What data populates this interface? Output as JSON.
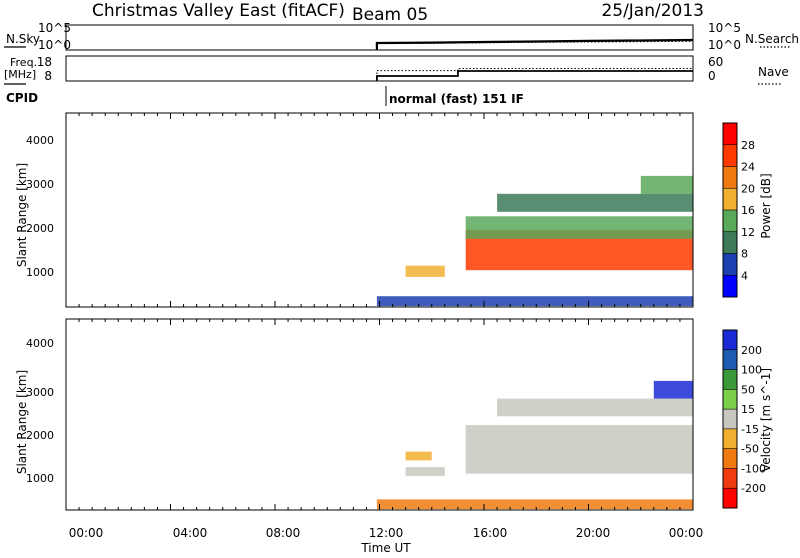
{
  "header": {
    "title": "Christmas Valley East (fitACF)",
    "beam": "Beam 05",
    "date": "25/Jan/2013"
  },
  "aux_panels": {
    "nsky": {
      "label": "N.Sky",
      "right_label": "N.Search",
      "left_ticks": [
        "10^5",
        "10^0"
      ],
      "right_ticks": [
        "10^5",
        "10^0"
      ]
    },
    "freq": {
      "label_line1": "Freq.",
      "label_line2": "[MHz]",
      "right_label": "Nave",
      "left_ticks": [
        "18",
        "8"
      ],
      "right_ticks": [
        "60",
        "0"
      ]
    },
    "cpid": {
      "label": "CPID",
      "text": "normal (fast) 151 IF"
    }
  },
  "x_axis": {
    "label": "Time UT",
    "ticks": [
      "00:00",
      "04:00",
      "08:00",
      "12:00",
      "16:00",
      "20:00",
      "00:00"
    ]
  },
  "panel_power": {
    "ylabel": "Slant Range [km]",
    "yticks": [
      "1000",
      "2000",
      "3000",
      "4000"
    ],
    "colorbar_label": "Power [dB]",
    "colorbar_ticks": [
      "4",
      "8",
      "12",
      "16",
      "20",
      "24",
      "28"
    ],
    "colors": [
      "#0000ff",
      "#1d40b0",
      "#3d7a5a",
      "#5aa85a",
      "#f0b030",
      "#f07a10",
      "#ff3a00",
      "#ff0000"
    ]
  },
  "panel_velocity": {
    "ylabel": "Slant Range [km]",
    "yticks": [
      "1000",
      "2000",
      "3000",
      "4000"
    ],
    "colorbar_label": "Velocity [m s^-1]",
    "colorbar_ticks": [
      "200",
      "100",
      "50",
      "15",
      "-15",
      "-50",
      "-100",
      "-200"
    ],
    "colors": [
      "#1a2bd6",
      "#1d5cb0",
      "#3a9a3a",
      "#7ad04a",
      "#c8c8c0",
      "#f0b030",
      "#f07a10",
      "#f03a10",
      "#ff0000"
    ]
  },
  "chart_data": [
    {
      "type": "line",
      "title": "Christmas Valley East (fitACF)",
      "x": [
        "12:00",
        "14:00",
        "16:00",
        "18:00",
        "20:00",
        "22:00",
        "24:00"
      ],
      "x_hours": [
        11.9,
        14.0,
        16.0,
        18.0,
        20.0,
        22.0,
        24.0
      ],
      "series": [
        {
          "name": "N.Sky",
          "values": [
            25,
            30,
            40,
            50,
            65,
            80,
            100
          ]
        },
        {
          "name": "N.Search",
          "values": [
            20,
            22,
            28,
            35,
            40,
            45,
            55
          ]
        }
      ],
      "ylabel": "N.Sky",
      "ylim": [
        1,
        100000
      ],
      "yscale": "log"
    },
    {
      "type": "line",
      "x_hours": [
        11.9,
        15.0,
        15.0,
        24.0
      ],
      "series": [
        {
          "name": "Freq.",
          "values": [
            10,
            10,
            12,
            12
          ]
        },
        {
          "name": "Nave",
          "values": [
            25,
            25,
            30,
            30
          ]
        }
      ],
      "ylabel": "Freq. [MHz]",
      "ylim": [
        8,
        18
      ],
      "y2lim": [
        0,
        60
      ]
    },
    {
      "type": "heatmap",
      "ylabel": "Slant Range [km]",
      "xlabel": "Time UT",
      "xlim_hours": [
        0,
        24
      ],
      "ylim": [
        180,
        4500
      ],
      "colorbar": "Power [dB]",
      "colorbar_ticks": [
        4,
        8,
        12,
        16,
        20,
        24,
        28
      ],
      "regions": [
        {
          "t0": 11.9,
          "t1": 24.0,
          "r0": 200,
          "r1": 420,
          "value": 6
        },
        {
          "t0": 13.0,
          "t1": 14.5,
          "r0": 850,
          "r1": 1100,
          "value": 18
        },
        {
          "t0": 15.3,
          "t1": 24.0,
          "r0": 1000,
          "r1": 1900,
          "value": 26
        },
        {
          "t0": 15.3,
          "t1": 24.0,
          "r0": 1700,
          "r1": 2200,
          "value": 12
        },
        {
          "t0": 16.5,
          "t1": 24.0,
          "r0": 2300,
          "r1": 2700,
          "value": 8
        },
        {
          "t0": 22.0,
          "t1": 24.0,
          "r0": 2700,
          "r1": 3100,
          "value": 14
        }
      ]
    },
    {
      "type": "heatmap",
      "ylabel": "Slant Range [km]",
      "xlabel": "Time UT",
      "xlim_hours": [
        0,
        24
      ],
      "ylim": [
        180,
        4500
      ],
      "colorbar": "Velocity [m s^-1]",
      "colorbar_ticks": [
        200,
        100,
        50,
        15,
        -15,
        -50,
        -100,
        -200
      ],
      "regions": [
        {
          "t0": 11.9,
          "t1": 24.0,
          "r0": 200,
          "r1": 420,
          "value": -60
        },
        {
          "t0": 13.0,
          "t1": 14.0,
          "r0": 1300,
          "r1": 1500,
          "value": -50
        },
        {
          "t0": 13.0,
          "t1": 14.5,
          "r0": 950,
          "r1": 1150,
          "value": -10
        },
        {
          "t0": 15.3,
          "t1": 24.0,
          "r0": 1000,
          "r1": 2100,
          "value": 0
        },
        {
          "t0": 16.5,
          "t1": 24.0,
          "r0": 2300,
          "r1": 2700,
          "value": -5
        },
        {
          "t0": 22.5,
          "t1": 24.0,
          "r0": 2700,
          "r1": 3100,
          "value": 250
        }
      ]
    }
  ]
}
